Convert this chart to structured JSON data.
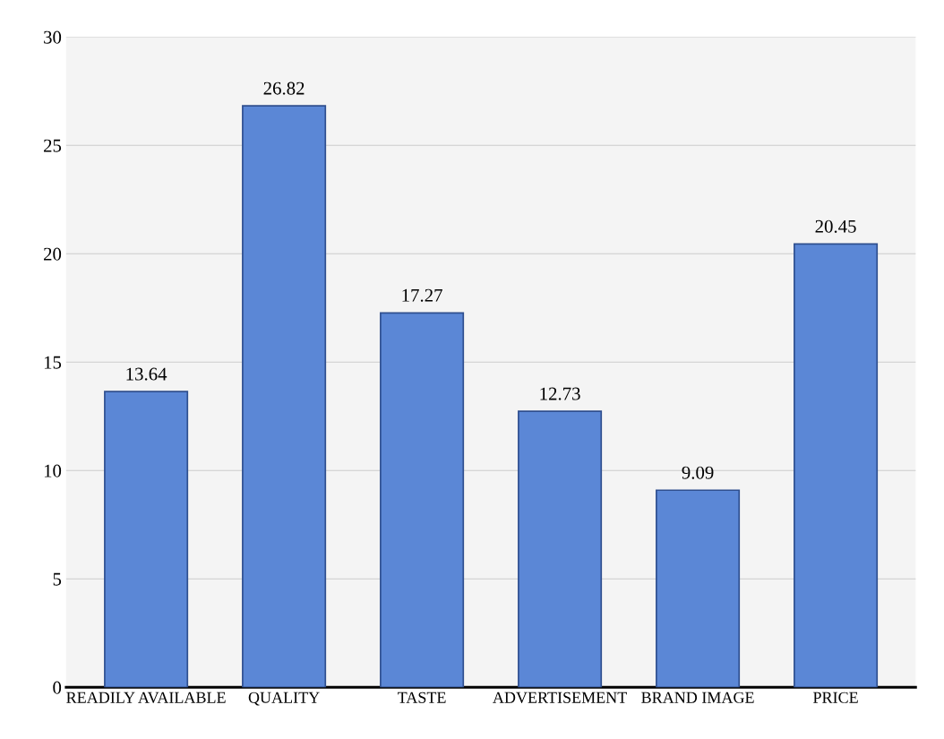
{
  "chart_data": {
    "type": "bar",
    "categories": [
      "READILY AVAILABLE",
      "QUALITY",
      "TASTE",
      "ADVERTISEMENT",
      "BRAND IMAGE",
      "PRICE"
    ],
    "values": [
      13.64,
      26.82,
      17.27,
      12.73,
      9.09,
      20.45
    ],
    "color": "#5b87d6",
    "ylim": [
      0,
      30
    ],
    "yticks": [
      0,
      5,
      10,
      15,
      20,
      25,
      30
    ],
    "grid": "y",
    "data_labels": true
  }
}
